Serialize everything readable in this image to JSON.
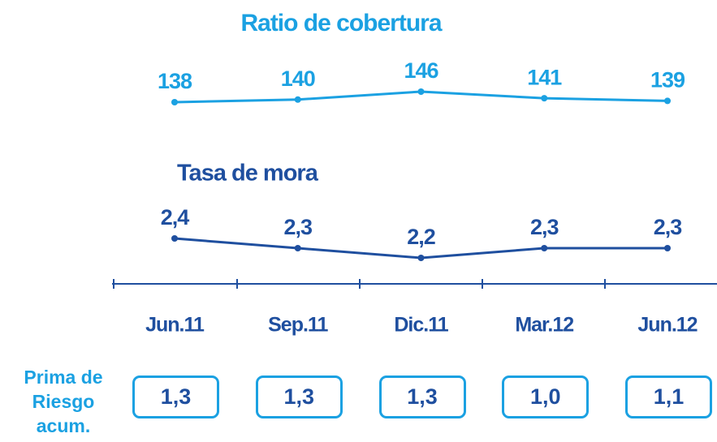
{
  "chart_data": {
    "type": "line",
    "categories": [
      "Jun.11",
      "Sep.11",
      "Dic.11",
      "Mar.12",
      "Jun.12"
    ],
    "series": [
      {
        "name": "Ratio de cobertura",
        "color": "#1ba1e2",
        "values": [
          138,
          140,
          146,
          141,
          139
        ]
      },
      {
        "name": "Tasa de mora",
        "color": "#1f4f9f",
        "values": [
          2.4,
          2.3,
          2.2,
          2.3,
          2.3
        ],
        "value_labels": [
          "2,4",
          "2,3",
          "2,2",
          "2,3",
          "2,3"
        ]
      }
    ]
  },
  "prima_de_riesgo": {
    "label": "Prima de Riesgo acum.",
    "values": [
      1.3,
      1.3,
      1.3,
      1.0,
      1.1
    ],
    "value_labels": [
      "1,3",
      "1,3",
      "1,3",
      "1,0",
      "1,1"
    ]
  }
}
